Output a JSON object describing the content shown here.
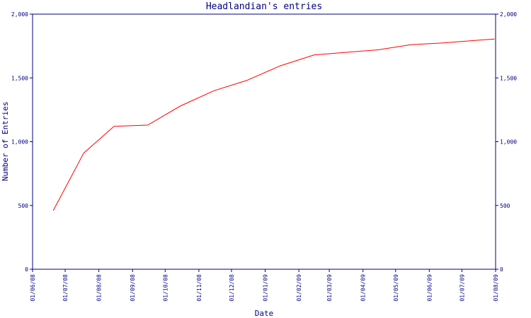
{
  "chart_data": {
    "type": "line",
    "title": "Headlandian's entries",
    "xlabel": "Date",
    "ylabel": "Number of Entries",
    "ylim": [
      0,
      2000
    ],
    "y_ticks": [
      0,
      500,
      1000,
      1500,
      2000
    ],
    "y_tick_labels": [
      "0",
      "500",
      "1,000",
      "1,500",
      "2,000"
    ],
    "x_ticks": [
      "2008-06-01",
      "2008-07-01",
      "2008-08-01",
      "2008-09-01",
      "2008-10-01",
      "2008-11-01",
      "2008-12-01",
      "2009-01-01",
      "2009-02-01",
      "2009-03-01",
      "2009-04-01",
      "2009-05-01",
      "2009-06-01",
      "2009-07-01",
      "2009-08-01"
    ],
    "x_tick_labels": [
      "01/06/08",
      "01/07/08",
      "01/08/08",
      "01/09/08",
      "01/10/08",
      "01/11/08",
      "01/12/08",
      "01/01/09",
      "01/02/09",
      "01/03/09",
      "01/04/09",
      "01/05/09",
      "01/06/09",
      "01/07/09",
      "01/08/09"
    ],
    "series": [
      {
        "color": "#ff0000",
        "x": [
          "2008-06-20",
          "2008-07-18",
          "2008-08-15",
          "2008-09-15",
          "2008-10-15",
          "2008-11-15",
          "2008-12-15",
          "2009-01-15",
          "2009-02-15",
          "2009-03-15",
          "2009-04-15",
          "2009-05-15",
          "2009-06-15",
          "2009-07-15",
          "2009-07-31"
        ],
        "values": [
          460,
          910,
          1120,
          1130,
          1280,
          1400,
          1480,
          1595,
          1680,
          1700,
          1720,
          1760,
          1775,
          1795,
          1805
        ]
      }
    ]
  }
}
